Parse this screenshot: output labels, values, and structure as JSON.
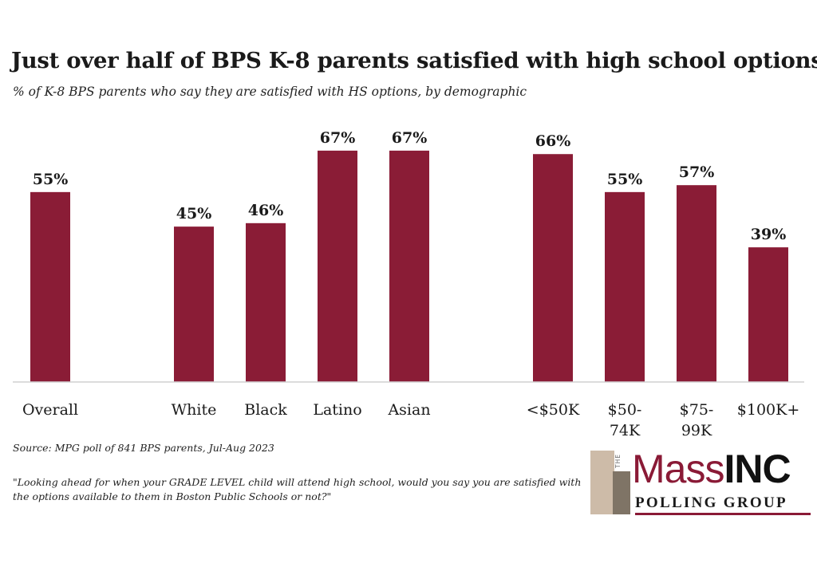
{
  "chart_data": {
    "type": "bar",
    "title": "Just over half of BPS K-8 parents satisfied with high school options",
    "subtitle": "% of K-8 BPS parents who say they are satisfied with HS options, by demographic",
    "categories": [
      "Overall",
      "White",
      "Black",
      "Latino",
      "Asian",
      "<$50K",
      "$50-74K",
      "$75-99K",
      "$100K+"
    ],
    "category_lines": [
      [
        "Overall"
      ],
      [
        "White"
      ],
      [
        "Black"
      ],
      [
        "Latino"
      ],
      [
        "Asian"
      ],
      [
        "<$50K"
      ],
      [
        "$50-",
        "74K"
      ],
      [
        "$75-",
        "99K"
      ],
      [
        "$100K+"
      ]
    ],
    "values": [
      55,
      45,
      46,
      67,
      67,
      66,
      55,
      57,
      39
    ],
    "data_labels": [
      "55%",
      "45%",
      "46%",
      "67%",
      "67%",
      "66%",
      "55%",
      "57%",
      "39%"
    ],
    "groups": [
      [
        "Overall"
      ],
      [
        "White",
        "Black",
        "Latino",
        "Asian"
      ],
      [
        "<$50K",
        "$50-74K",
        "$75-99K",
        "$100K+"
      ]
    ],
    "ylim": [
      0,
      100
    ],
    "grid": false,
    "bar_color": "#8a1c36",
    "baseline_color": "#d0d0d0"
  },
  "footer": {
    "source": "Source: MPG poll of 841 BPS parents, Jul-Aug 2023",
    "question": "\"Looking ahead for when your GRADE LEVEL child will attend high school, would you say you are satisfied with the options available to them in Boston Public Schools or not?\""
  },
  "logo": {
    "the": "THE",
    "word_mass": "Mass",
    "word_inc": "INC",
    "sub": "POLLING GROUP"
  }
}
